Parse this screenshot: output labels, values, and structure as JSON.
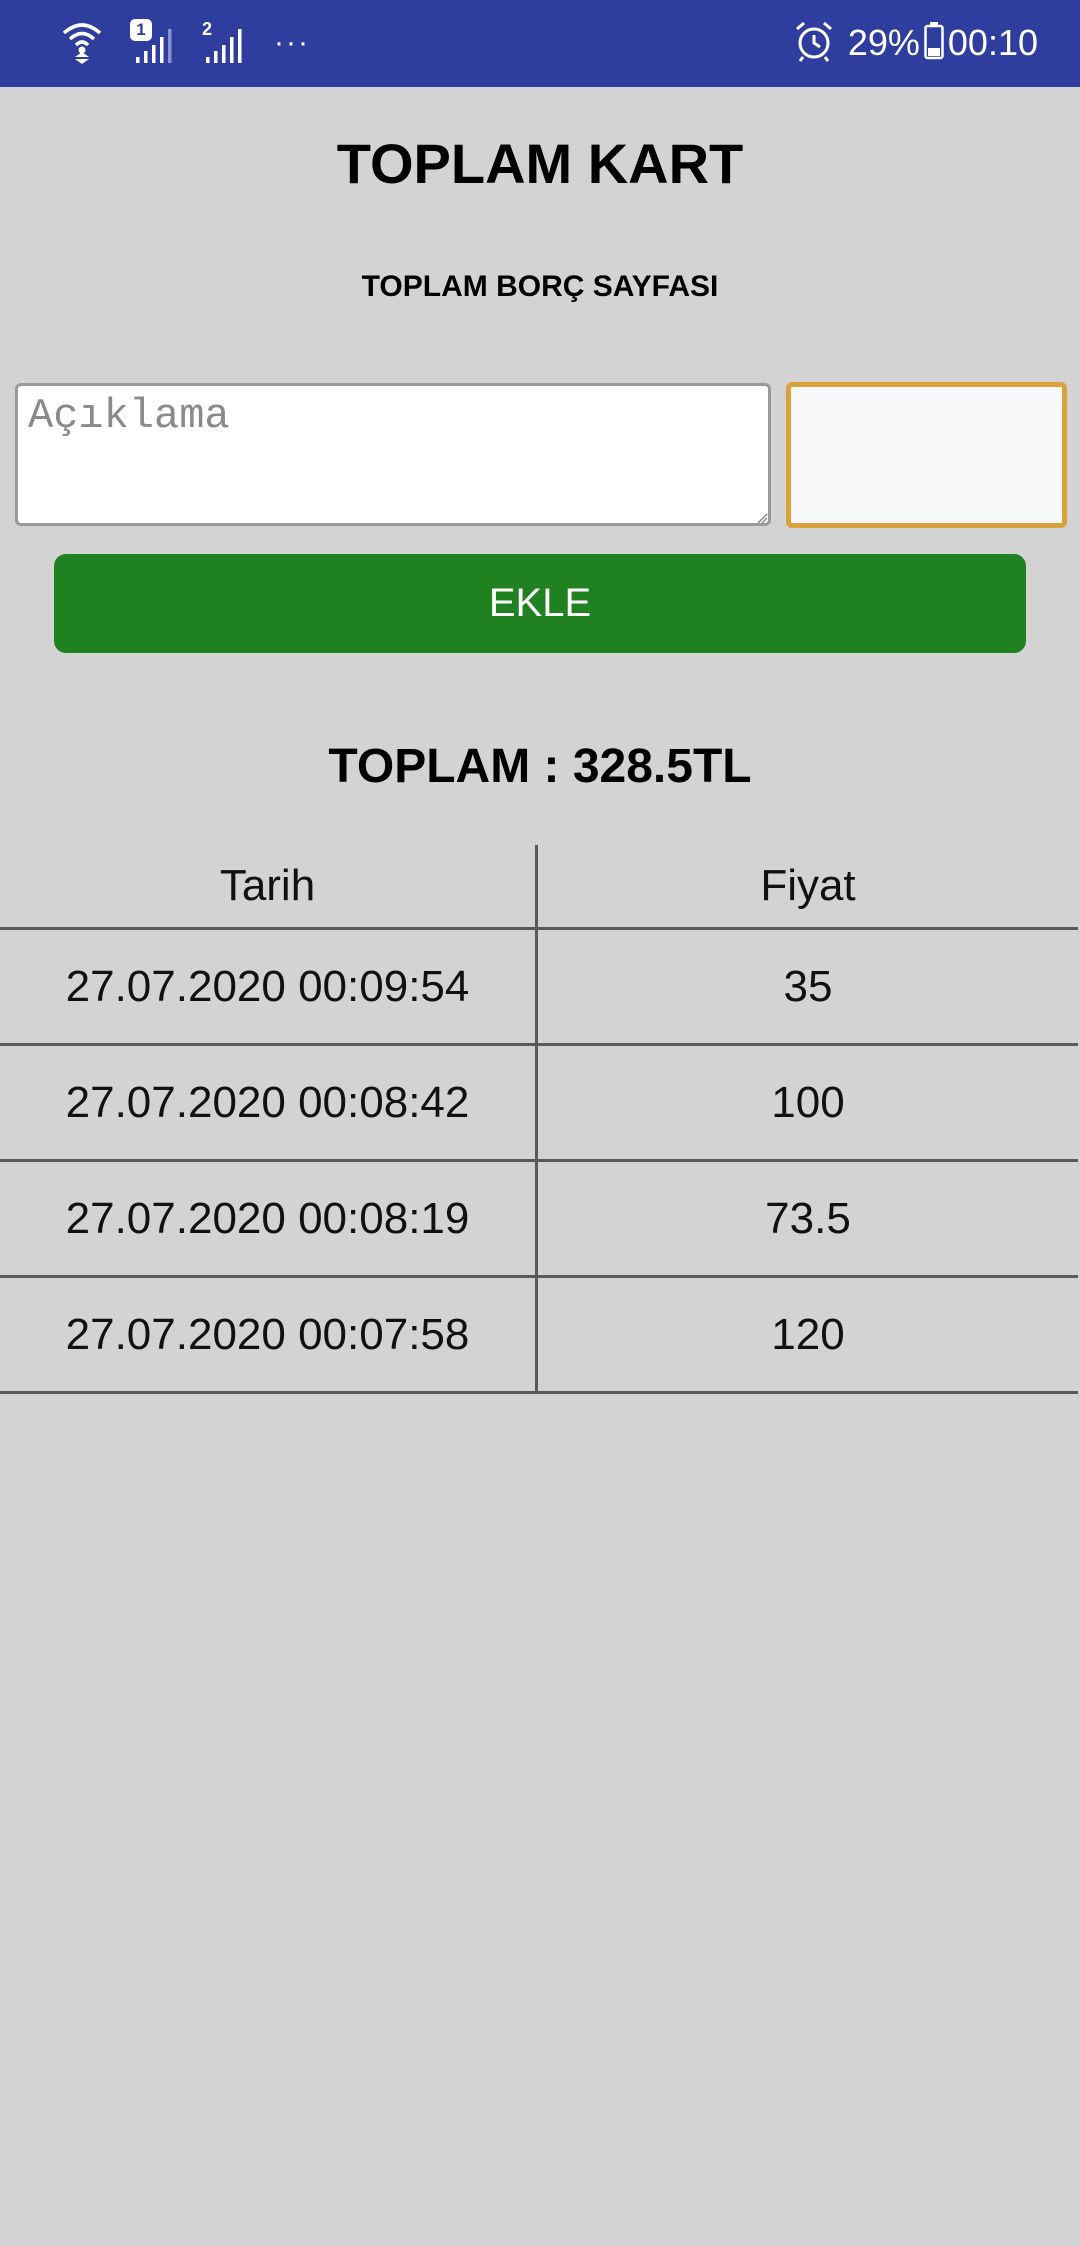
{
  "status_bar": {
    "battery_percent": "29%",
    "time": "00:10",
    "sim1_badge": "1",
    "sim2_badge": "2",
    "overflow": "···",
    "icons": [
      "wifi-icon",
      "signal-sim1-icon",
      "signal-sim2-icon",
      "alarm-icon",
      "battery-icon"
    ],
    "background_color": "#2f3d9e"
  },
  "header": {
    "title": "TOPLAM KART",
    "subtitle": "TOPLAM BORÇ SAYFASI"
  },
  "form": {
    "description_placeholder": "Açıklama",
    "description_value": "",
    "price_value": "",
    "add_button_label": "EKLE",
    "add_button_color": "#1f811f",
    "focused_border_color": "#d9a23a"
  },
  "summary": {
    "total_text": "TOPLAM : 328.5TL"
  },
  "table": {
    "columns": [
      "Tarih",
      "Fiyat"
    ],
    "rows": [
      [
        "27.07.2020 00:09:54",
        "35"
      ],
      [
        "27.07.2020 00:08:42",
        "100"
      ],
      [
        "27.07.2020 00:08:19",
        "73.5"
      ],
      [
        "27.07.2020 00:07:58",
        "120"
      ]
    ]
  }
}
